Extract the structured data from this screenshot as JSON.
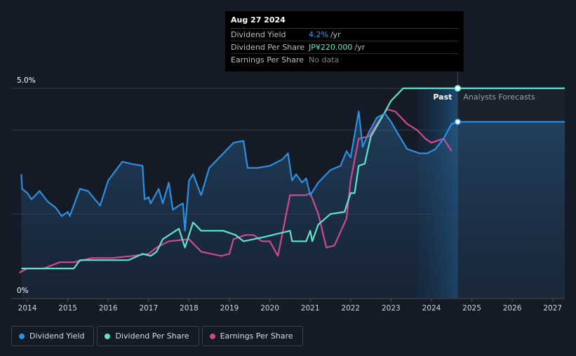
{
  "tooltip": {
    "date": "Aug 27 2024",
    "rows": [
      {
        "label": "Dividend Yield",
        "value": "4.2%",
        "unit": "/yr"
      },
      {
        "label": "Dividend Per Share",
        "value": "JP¥220.000",
        "unit": "/yr"
      },
      {
        "label": "Earnings Per Share",
        "value": "No data",
        "unit": ""
      }
    ]
  },
  "sections": {
    "past": "Past",
    "forecast": "Analysts Forecasts"
  },
  "legend": [
    {
      "label": "Dividend Yield",
      "color": "#2e8fe0"
    },
    {
      "label": "Dividend Per Share",
      "color": "#5fe3c9"
    },
    {
      "label": "Earnings Per Share",
      "color": "#cd4a8e"
    }
  ],
  "chart_data": {
    "type": "line",
    "y_tick_labels": [
      "5.0%",
      "0%"
    ],
    "ylim": [
      0,
      5.0
    ],
    "xlim": [
      2013.6,
      2027.3
    ],
    "x_ticks": [
      2014,
      2015,
      2016,
      2017,
      2018,
      2019,
      2020,
      2021,
      2022,
      2023,
      2024,
      2025,
      2026,
      2027
    ],
    "past_end": 2024.65,
    "forecast_shade_start": 2023.65,
    "series": [
      {
        "name": "Dividend Yield",
        "color": "#2e8fe0",
        "points": [
          [
            2013.85,
            2.95
          ],
          [
            2013.87,
            2.6
          ],
          [
            2014.0,
            2.5
          ],
          [
            2014.1,
            2.35
          ],
          [
            2014.3,
            2.55
          ],
          [
            2014.5,
            2.3
          ],
          [
            2014.7,
            2.15
          ],
          [
            2014.85,
            1.95
          ],
          [
            2015.0,
            2.05
          ],
          [
            2015.05,
            1.95
          ],
          [
            2015.3,
            2.6
          ],
          [
            2015.5,
            2.55
          ],
          [
            2015.8,
            2.2
          ],
          [
            2016.0,
            2.8
          ],
          [
            2016.35,
            3.25
          ],
          [
            2016.55,
            3.2
          ],
          [
            2016.85,
            3.15
          ],
          [
            2016.9,
            2.35
          ],
          [
            2017.0,
            2.4
          ],
          [
            2017.05,
            2.25
          ],
          [
            2017.25,
            2.6
          ],
          [
            2017.35,
            2.25
          ],
          [
            2017.5,
            2.75
          ],
          [
            2017.6,
            2.1
          ],
          [
            2017.75,
            2.2
          ],
          [
            2017.85,
            2.25
          ],
          [
            2017.9,
            1.6
          ],
          [
            2018.0,
            2.8
          ],
          [
            2018.1,
            2.95
          ],
          [
            2018.3,
            2.45
          ],
          [
            2018.5,
            3.1
          ],
          [
            2018.8,
            3.4
          ],
          [
            2019.1,
            3.7
          ],
          [
            2019.35,
            3.75
          ],
          [
            2019.45,
            3.1
          ],
          [
            2019.7,
            3.1
          ],
          [
            2020.0,
            3.15
          ],
          [
            2020.3,
            3.3
          ],
          [
            2020.45,
            3.45
          ],
          [
            2020.55,
            2.8
          ],
          [
            2020.65,
            2.95
          ],
          [
            2020.8,
            2.75
          ],
          [
            2020.9,
            2.85
          ],
          [
            2021.0,
            2.45
          ],
          [
            2021.2,
            2.75
          ],
          [
            2021.5,
            3.05
          ],
          [
            2021.75,
            3.15
          ],
          [
            2021.9,
            3.5
          ],
          [
            2022.0,
            3.35
          ],
          [
            2022.2,
            4.45
          ],
          [
            2022.3,
            3.6
          ],
          [
            2022.45,
            3.95
          ],
          [
            2022.65,
            4.3
          ],
          [
            2022.85,
            4.4
          ],
          [
            2023.0,
            4.2
          ],
          [
            2023.15,
            3.95
          ],
          [
            2023.4,
            3.55
          ],
          [
            2023.7,
            3.45
          ],
          [
            2023.9,
            3.45
          ],
          [
            2024.1,
            3.55
          ],
          [
            2024.3,
            3.8
          ],
          [
            2024.5,
            4.15
          ],
          [
            2024.65,
            4.2
          ],
          [
            2027.3,
            4.2
          ]
        ]
      },
      {
        "name": "Dividend Per Share",
        "color": "#5fe3c9",
        "points": [
          [
            2013.85,
            0.7
          ],
          [
            2015.15,
            0.7
          ],
          [
            2015.3,
            0.9
          ],
          [
            2016.5,
            0.9
          ],
          [
            2016.85,
            1.05
          ],
          [
            2017.05,
            1.0
          ],
          [
            2017.2,
            1.1
          ],
          [
            2017.35,
            1.4
          ],
          [
            2017.75,
            1.65
          ],
          [
            2017.9,
            1.2
          ],
          [
            2018.0,
            1.5
          ],
          [
            2018.1,
            1.8
          ],
          [
            2018.3,
            1.6
          ],
          [
            2018.85,
            1.6
          ],
          [
            2019.15,
            1.5
          ],
          [
            2019.35,
            1.35
          ],
          [
            2019.85,
            1.45
          ],
          [
            2020.5,
            1.6
          ],
          [
            2020.55,
            1.35
          ],
          [
            2020.9,
            1.35
          ],
          [
            2021.0,
            1.6
          ],
          [
            2021.05,
            1.35
          ],
          [
            2021.2,
            1.75
          ],
          [
            2021.5,
            2.0
          ],
          [
            2021.85,
            2.05
          ],
          [
            2022.0,
            2.5
          ],
          [
            2022.1,
            2.5
          ],
          [
            2022.2,
            3.15
          ],
          [
            2022.35,
            3.2
          ],
          [
            2022.5,
            3.85
          ],
          [
            2022.8,
            4.35
          ],
          [
            2023.0,
            4.7
          ],
          [
            2023.3,
            5.0
          ],
          [
            2027.3,
            5.0
          ]
        ]
      },
      {
        "name": "Earnings Per Share",
        "color": "#cd4a8e",
        "points": [
          [
            2013.8,
            0.6
          ],
          [
            2014.0,
            0.7
          ],
          [
            2014.4,
            0.7
          ],
          [
            2014.8,
            0.85
          ],
          [
            2015.15,
            0.85
          ],
          [
            2015.6,
            0.95
          ],
          [
            2016.1,
            0.95
          ],
          [
            2016.6,
            1.0
          ],
          [
            2017.0,
            1.05
          ],
          [
            2017.2,
            1.2
          ],
          [
            2017.5,
            1.35
          ],
          [
            2018.0,
            1.4
          ],
          [
            2018.3,
            1.1
          ],
          [
            2018.8,
            1.0
          ],
          [
            2019.0,
            1.05
          ],
          [
            2019.1,
            1.4
          ],
          [
            2019.4,
            1.5
          ],
          [
            2019.6,
            1.5
          ],
          [
            2019.8,
            1.35
          ],
          [
            2020.0,
            1.35
          ],
          [
            2020.2,
            1.0
          ],
          [
            2020.5,
            2.45
          ],
          [
            2020.9,
            2.45
          ],
          [
            2021.0,
            2.5
          ],
          [
            2021.2,
            2.0
          ],
          [
            2021.4,
            1.2
          ],
          [
            2021.6,
            1.25
          ],
          [
            2021.9,
            1.9
          ],
          [
            2022.0,
            2.8
          ],
          [
            2022.2,
            3.8
          ],
          [
            2022.45,
            3.85
          ],
          [
            2022.65,
            4.15
          ],
          [
            2022.9,
            4.5
          ],
          [
            2023.1,
            4.45
          ],
          [
            2023.4,
            4.15
          ],
          [
            2023.65,
            4.0
          ],
          [
            2023.85,
            3.8
          ],
          [
            2024.0,
            3.7
          ],
          [
            2024.3,
            3.8
          ],
          [
            2024.5,
            3.5
          ]
        ]
      }
    ]
  }
}
